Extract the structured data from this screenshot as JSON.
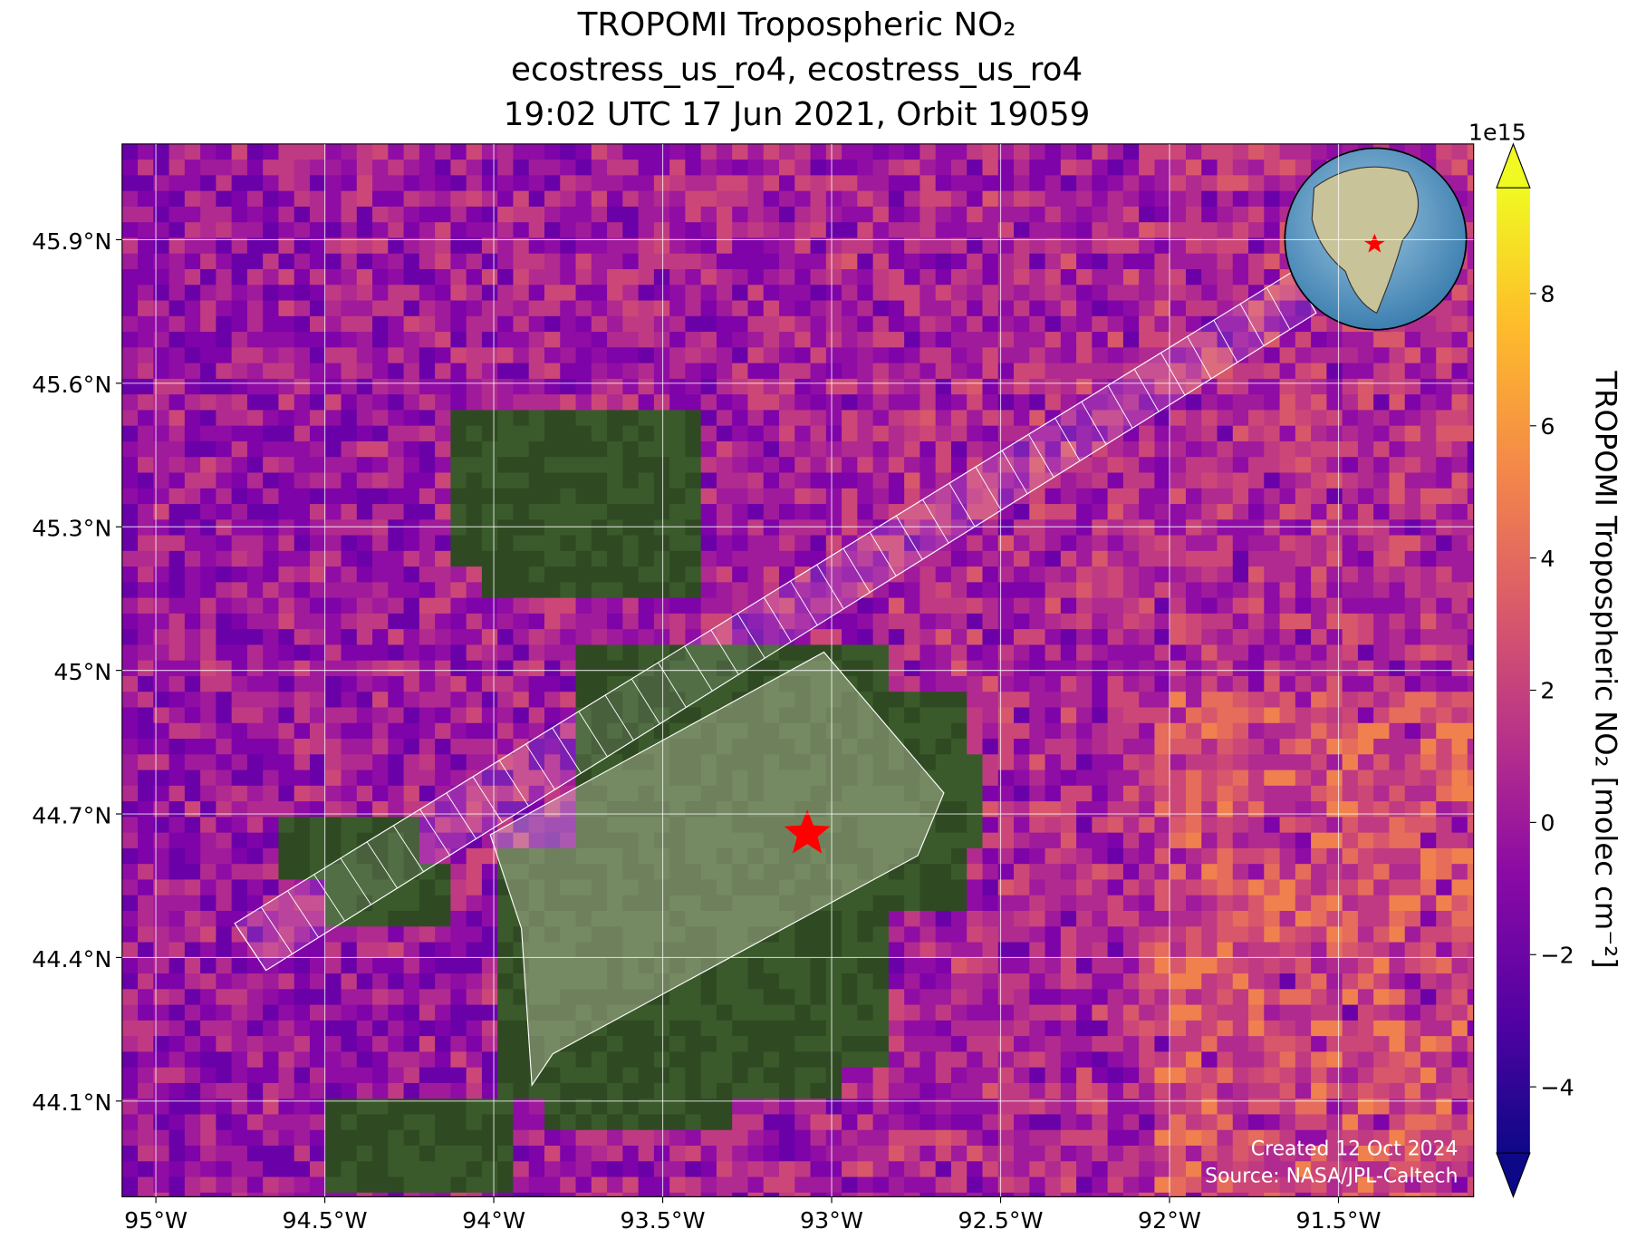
{
  "chart_data": {
    "type": "map",
    "title": [
      "TROPOMI Tropospheric NO₂",
      "ecostress_us_ro4, ecostress_us_ro4",
      "19:02 UTC 17 Jun 2021, Orbit 19059"
    ],
    "xlim": [
      -95.1,
      -91.1
    ],
    "ylim": [
      43.9,
      46.1
    ],
    "xticks": [
      {
        "value": -95,
        "label": "95°W"
      },
      {
        "value": -94.5,
        "label": "94.5°W"
      },
      {
        "value": -94,
        "label": "94°W"
      },
      {
        "value": -93.5,
        "label": "93.5°W"
      },
      {
        "value": -93,
        "label": "93°W"
      },
      {
        "value": -92.5,
        "label": "92.5°W"
      },
      {
        "value": -92,
        "label": "92°W"
      },
      {
        "value": -91.5,
        "label": "91.5°W"
      }
    ],
    "yticks": [
      {
        "value": 44.1,
        "label": "44.1°N"
      },
      {
        "value": 44.4,
        "label": "44.4°N"
      },
      {
        "value": 44.7,
        "label": "44.7°N"
      },
      {
        "value": 45,
        "label": "45°N"
      },
      {
        "value": 45.3,
        "label": "45.3°N"
      },
      {
        "value": 45.6,
        "label": "45.6°N"
      },
      {
        "value": 45.9,
        "label": "45.9°N"
      }
    ],
    "grid": true,
    "colorbar": {
      "lim": [
        -5,
        9.6
      ],
      "ticks": [
        {
          "value": -4,
          "label": "−4"
        },
        {
          "value": -2,
          "label": "−2"
        },
        0,
        2,
        4,
        6,
        8
      ],
      "exponent": "1e15",
      "label": "TROPOMI Tropospheric NO₂ [molec cm⁻²]",
      "colormap": "plasma"
    },
    "annotations": [
      "Created 12 Oct 2024",
      "Source: NASA/JPL-Caltech"
    ]
  }
}
